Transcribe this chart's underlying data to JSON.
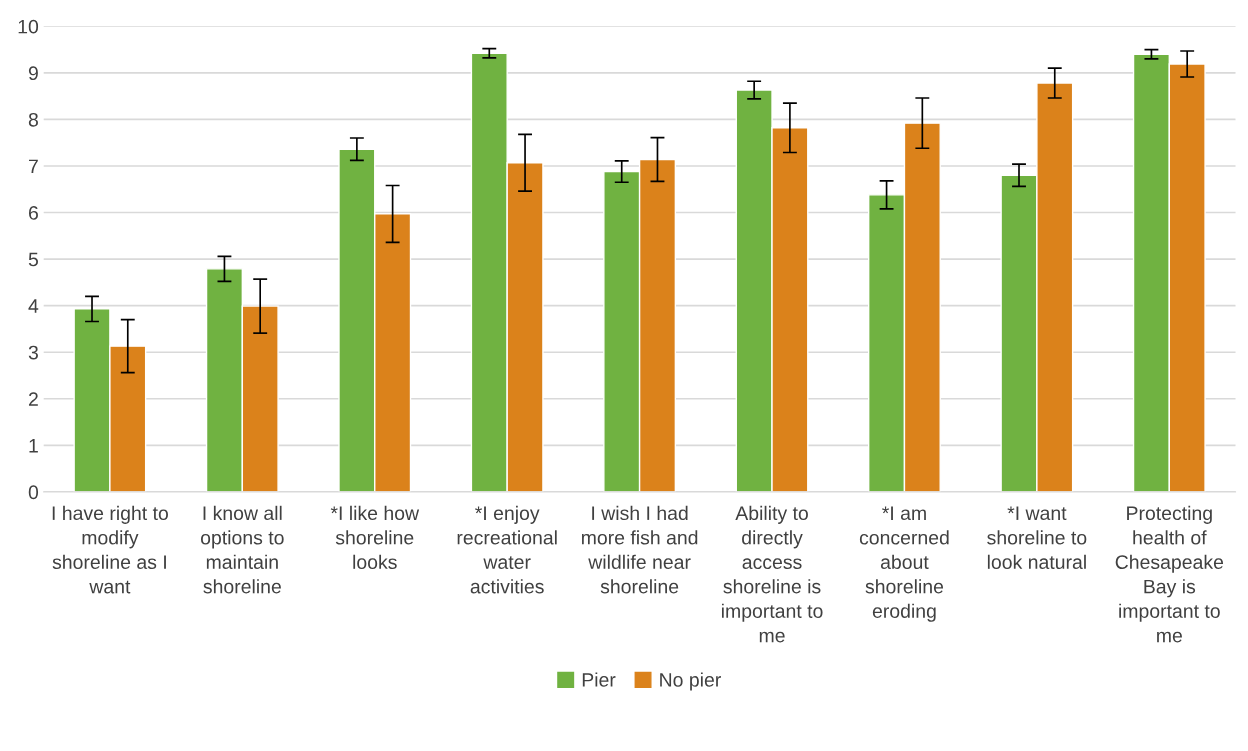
{
  "chart_data": {
    "type": "bar",
    "categories": [
      "I have right to modify shoreline as I want",
      "I know all options to maintain shoreline",
      "*I like how shoreline looks",
      "*I enjoy recreational water activities",
      "I wish I had more fish and wildlife near shoreline",
      "Ability to directly access shoreline is important to me",
      "*I am concerned about shoreline eroding",
      "*I want shoreline to look natural",
      "Protecting health of Chesapeake Bay is important to me"
    ],
    "series": [
      {
        "name": "Pier",
        "color": "#70b241",
        "values": [
          3.93,
          4.79,
          7.36,
          9.42,
          6.88,
          8.63,
          6.38,
          6.8,
          9.4
        ],
        "errors": [
          0.27,
          0.27,
          0.24,
          0.1,
          0.23,
          0.19,
          0.3,
          0.24,
          0.1
        ]
      },
      {
        "name": "No pier",
        "color": "#db821b",
        "values": [
          3.13,
          3.99,
          5.97,
          7.07,
          7.14,
          7.82,
          7.92,
          8.78,
          9.19
        ],
        "errors": [
          0.57,
          0.58,
          0.61,
          0.61,
          0.47,
          0.53,
          0.54,
          0.32,
          0.28
        ]
      }
    ],
    "ylim": [
      0,
      10
    ],
    "yticks": [
      0,
      1,
      2,
      3,
      4,
      5,
      6,
      7,
      8,
      9,
      10
    ],
    "grid": "y",
    "legend": "bottom"
  }
}
